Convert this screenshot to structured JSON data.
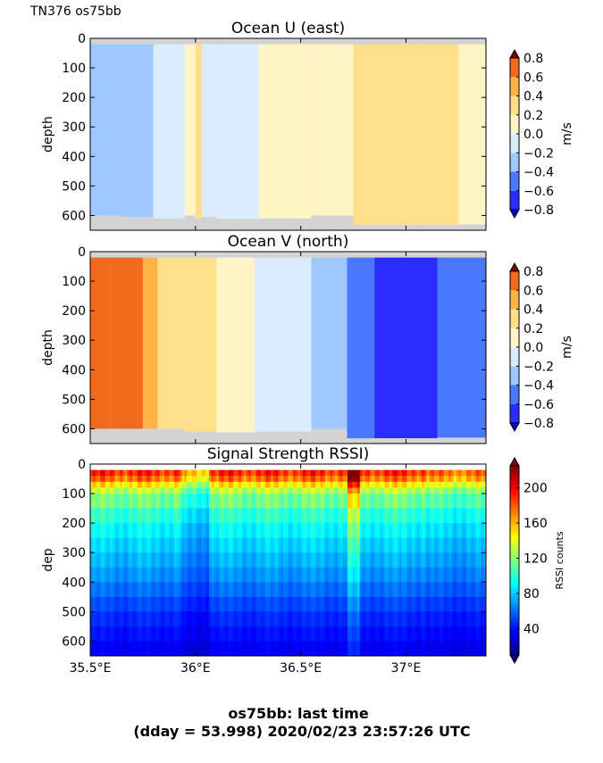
{
  "figure": {
    "header": "TN376 os75bb",
    "footer_line1": "os75bb: last time",
    "footer_line2": "(dday = 53.998) 2020/02/23 23:57:26 UTC"
  },
  "chart_data": [
    {
      "type": "heatmap",
      "title": "Ocean U (east)",
      "xlabel": "",
      "ylabel": "depth",
      "x_ticks": [
        "35.5°E",
        "36°E",
        "36.5°E",
        "37°E"
      ],
      "x_tick_values": [
        35.5,
        36.0,
        36.5,
        37.0
      ],
      "xlim": [
        35.5,
        37.38
      ],
      "y_ticks": [
        "0",
        "100",
        "200",
        "300",
        "400",
        "500",
        "600"
      ],
      "ylim": [
        650,
        0
      ],
      "colorbar": {
        "label": "m/s",
        "ticks": [
          "0.8",
          "0.6",
          "0.4",
          "0.2",
          "0.0",
          "−0.2",
          "−0.4",
          "−0.6",
          "−0.8"
        ],
        "range": [
          -0.8,
          0.8
        ],
        "extend": "both"
      },
      "columns": [
        {
          "lon0": 35.5,
          "lon1": 35.57,
          "value": -0.35,
          "bottom": 600
        },
        {
          "lon0": 35.57,
          "lon1": 35.65,
          "value": -0.3,
          "bottom": 600
        },
        {
          "lon0": 35.65,
          "lon1": 35.8,
          "value": -0.25,
          "bottom": 605
        },
        {
          "lon0": 35.8,
          "lon1": 35.95,
          "value": -0.1,
          "bottom": 610
        },
        {
          "lon0": 35.95,
          "lon1": 36.0,
          "value": 0.1,
          "bottom": 600
        },
        {
          "lon0": 36.0,
          "lon1": 36.03,
          "value": 0.25,
          "bottom": 610
        },
        {
          "lon0": 36.03,
          "lon1": 36.1,
          "value": -0.1,
          "bottom": 605
        },
        {
          "lon0": 36.1,
          "lon1": 36.3,
          "value": -0.1,
          "bottom": 612
        },
        {
          "lon0": 36.3,
          "lon1": 36.55,
          "value": 0.05,
          "bottom": 610
        },
        {
          "lon0": 36.55,
          "lon1": 36.75,
          "value": 0.12,
          "bottom": 600
        },
        {
          "lon0": 36.75,
          "lon1": 37.05,
          "value": 0.35,
          "bottom": 632
        },
        {
          "lon0": 37.05,
          "lon1": 37.25,
          "value": 0.3,
          "bottom": 632
        },
        {
          "lon0": 37.25,
          "lon1": 37.38,
          "value": 0.1,
          "bottom": 630
        }
      ]
    },
    {
      "type": "heatmap",
      "title": "Ocean V (north)",
      "xlabel": "",
      "ylabel": "depth",
      "x_ticks": [
        "35.5°E",
        "36°E",
        "36.5°E",
        "37°E"
      ],
      "x_tick_values": [
        35.5,
        36.0,
        36.5,
        37.0
      ],
      "xlim": [
        35.5,
        37.38
      ],
      "y_ticks": [
        "0",
        "100",
        "200",
        "300",
        "400",
        "500",
        "600"
      ],
      "ylim": [
        650,
        0
      ],
      "colorbar": {
        "label": "m/s",
        "ticks": [
          "0.8",
          "0.6",
          "0.4",
          "0.2",
          "0.0",
          "−0.2",
          "−0.4",
          "−0.6",
          "−0.8"
        ],
        "range": [
          -0.8,
          0.8
        ],
        "extend": "both"
      },
      "columns": [
        {
          "lon0": 35.5,
          "lon1": 35.6,
          "value": 0.62,
          "bottom": 600
        },
        {
          "lon0": 35.6,
          "lon1": 35.75,
          "value": 0.6,
          "bottom": 600
        },
        {
          "lon0": 35.75,
          "lon1": 35.82,
          "value": 0.45,
          "bottom": 600
        },
        {
          "lon0": 35.82,
          "lon1": 35.95,
          "value": 0.3,
          "bottom": 600
        },
        {
          "lon0": 35.95,
          "lon1": 36.05,
          "value": 0.25,
          "bottom": 610
        },
        {
          "lon0": 36.05,
          "lon1": 36.1,
          "value": 0.2,
          "bottom": 610
        },
        {
          "lon0": 36.1,
          "lon1": 36.28,
          "value": 0.1,
          "bottom": 612
        },
        {
          "lon0": 36.28,
          "lon1": 36.55,
          "value": -0.1,
          "bottom": 610
        },
        {
          "lon0": 36.55,
          "lon1": 36.72,
          "value": -0.25,
          "bottom": 600
        },
        {
          "lon0": 36.72,
          "lon1": 36.85,
          "value": -0.45,
          "bottom": 632
        },
        {
          "lon0": 36.85,
          "lon1": 37.15,
          "value": -0.62,
          "bottom": 632
        },
        {
          "lon0": 37.15,
          "lon1": 37.38,
          "value": -0.55,
          "bottom": 630
        }
      ]
    },
    {
      "type": "heatmap",
      "title": "Signal Strength RSSI)",
      "xlabel": "",
      "ylabel": "dep",
      "x_ticks": [
        "35.5°E",
        "36°E",
        "36.5°E",
        "37°E"
      ],
      "x_tick_values": [
        35.5,
        36.0,
        36.5,
        37.0
      ],
      "xlim": [
        35.5,
        37.38
      ],
      "y_ticks": [
        "0",
        "100",
        "200",
        "300",
        "400",
        "500",
        "600"
      ],
      "ylim": [
        650,
        0
      ],
      "colorbar": {
        "label": "RSSI counts",
        "ticks": [
          "200",
          "160",
          "120",
          "80",
          "40"
        ],
        "range": [
          10,
          225
        ],
        "extend": "both"
      },
      "profile_depths": [
        20,
        40,
        60,
        80,
        100,
        150,
        200,
        250,
        300,
        350,
        400,
        450,
        500,
        550,
        600,
        650
      ],
      "profile_counts": [
        190,
        175,
        150,
        130,
        115,
        100,
        90,
        82,
        75,
        68,
        60,
        52,
        45,
        40,
        35,
        30
      ]
    }
  ]
}
